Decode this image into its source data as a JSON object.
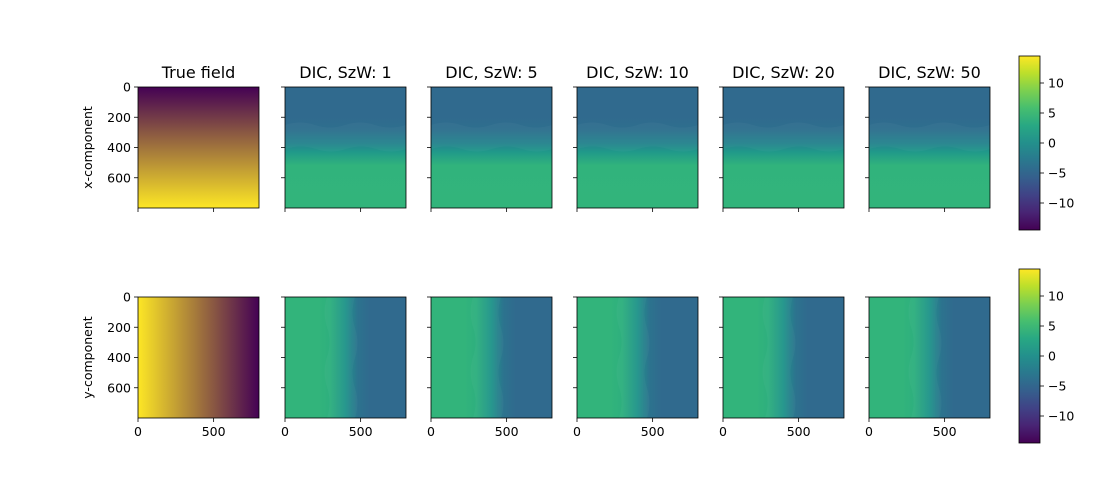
{
  "chart_data": {
    "type": "heatmap",
    "colormap": "viridis",
    "columns": [
      "True field",
      "DIC, SzW: 1",
      "DIC, SzW: 5",
      "DIC, SzW: 10",
      "DIC, SzW: 20",
      "DIC, SzW: 50"
    ],
    "rows": [
      {
        "ylabel": "x-component",
        "axis": "vertical",
        "colorbar": {
          "vmin": -14.5,
          "vmax": 14.5,
          "ticks": [
            10,
            5,
            0,
            -5,
            -10
          ]
        },
        "true_profile": {
          "positions": [
            0,
            800
          ],
          "values": [
            -14.5,
            14.5
          ]
        },
        "dic_profile": {
          "positions": [
            0,
            200,
            280,
            370,
            430,
            520,
            800
          ],
          "values": [
            -4.6,
            -4.6,
            -4.0,
            -1.5,
            1.0,
            4.3,
            4.4
          ]
        }
      },
      {
        "ylabel": "y-component",
        "axis": "horizontal",
        "colorbar": {
          "vmin": -14.5,
          "vmax": 14.5,
          "ticks": [
            10,
            5,
            0,
            -5,
            -10
          ]
        },
        "true_profile": {
          "positions": [
            0,
            800
          ],
          "values": [
            14.5,
            -14.5
          ]
        },
        "dic_profile": {
          "positions": [
            0,
            220,
            300,
            400,
            480,
            560,
            800
          ],
          "values": [
            4.4,
            4.4,
            3.8,
            0.5,
            -3.5,
            -4.6,
            -4.6
          ]
        }
      }
    ],
    "image_extent": [
      0,
      800
    ],
    "y_ticks": [
      0,
      200,
      400,
      600
    ],
    "x_ticks": [
      0,
      500
    ]
  }
}
